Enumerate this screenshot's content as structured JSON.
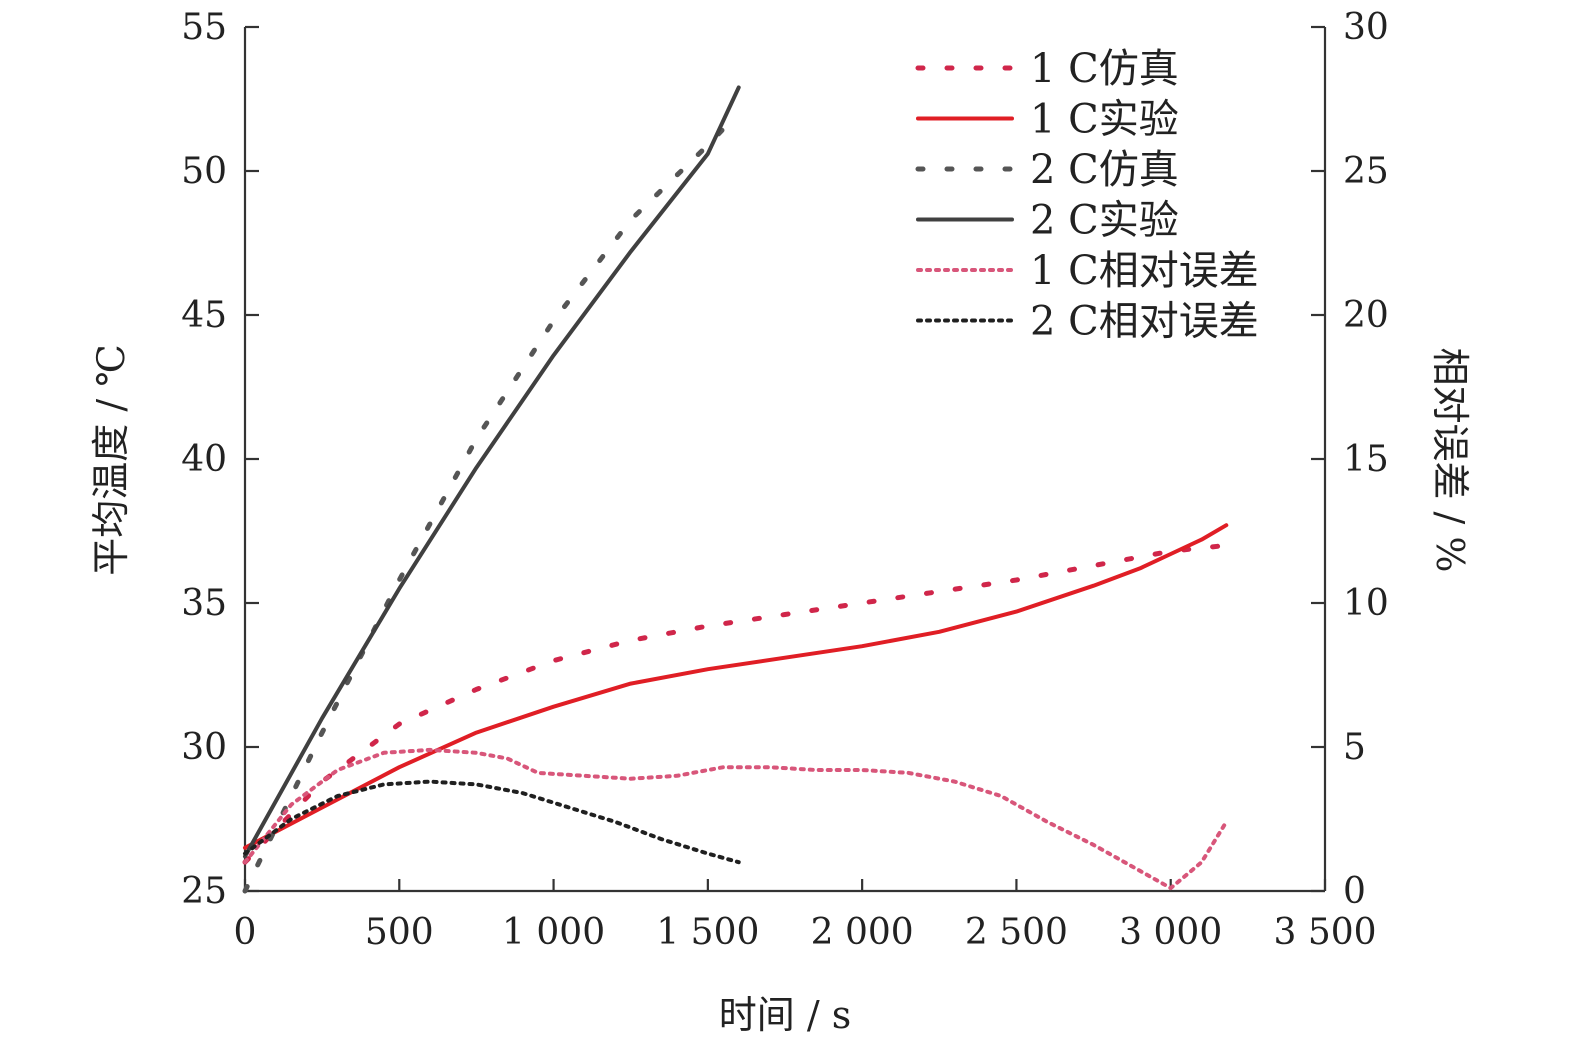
{
  "chart_data": {
    "type": "line",
    "xlabel": "时间 / s",
    "ylabel_left": "平均温度 / ℃",
    "ylabel_right": "相对误差 / %",
    "xlim": [
      0,
      3500
    ],
    "ylim_left": [
      25,
      55
    ],
    "ylim_right": [
      0,
      30
    ],
    "x_ticks": [
      0,
      500,
      1000,
      1500,
      2000,
      2500,
      3000,
      3500
    ],
    "x_tick_labels": [
      "0",
      "500",
      "1 000",
      "1 500",
      "2 000",
      "2 500",
      "3 000",
      "3 500"
    ],
    "y_left_ticks": [
      25,
      30,
      35,
      40,
      45,
      50,
      55
    ],
    "y_right_ticks": [
      0,
      5,
      10,
      15,
      20,
      25,
      30
    ],
    "grid": false,
    "legend_position": "top-right",
    "series": [
      {
        "name": "1 C仿真",
        "axis": "left",
        "style": "dashed",
        "color": "#d0264a",
        "x": [
          0,
          250,
          500,
          750,
          1000,
          1250,
          1500,
          1750,
          2000,
          2250,
          2500,
          2750,
          3000,
          3180
        ],
        "y": [
          26.0,
          28.8,
          30.8,
          32.0,
          33.0,
          33.7,
          34.2,
          34.6,
          35.0,
          35.4,
          35.8,
          36.3,
          36.8,
          37.0
        ]
      },
      {
        "name": "1 C实验",
        "axis": "left",
        "style": "solid",
        "color": "#e01e25",
        "x": [
          0,
          250,
          500,
          750,
          1000,
          1250,
          1500,
          1750,
          2000,
          2250,
          2500,
          2750,
          2900,
          3000,
          3100,
          3180
        ],
        "y": [
          26.5,
          27.9,
          29.3,
          30.5,
          31.4,
          32.2,
          32.7,
          33.1,
          33.5,
          34.0,
          34.7,
          35.6,
          36.2,
          36.7,
          37.2,
          37.7
        ]
      },
      {
        "name": "2 C仿真",
        "axis": "left",
        "style": "dashed",
        "color": "#555555",
        "x": [
          0,
          250,
          500,
          750,
          1000,
          1250,
          1500,
          1580
        ],
        "y": [
          25.0,
          30.5,
          35.8,
          40.7,
          44.8,
          48.3,
          50.9,
          51.8
        ]
      },
      {
        "name": "2 C实验",
        "axis": "left",
        "style": "solid",
        "color": "#404040",
        "x": [
          0,
          250,
          500,
          750,
          1000,
          1250,
          1500,
          1600
        ],
        "y": [
          26.2,
          31.0,
          35.5,
          39.7,
          43.6,
          47.2,
          50.6,
          52.9
        ]
      },
      {
        "name": "1 C相对误差",
        "axis": "right",
        "style": "dotted",
        "color": "#d8567a",
        "x": [
          0,
          150,
          300,
          450,
          600,
          750,
          850,
          950,
          1100,
          1250,
          1400,
          1550,
          1700,
          1850,
          2000,
          2150,
          2300,
          2450,
          2600,
          2750,
          2900,
          3000,
          3100,
          3180
        ],
        "y": [
          1.0,
          3.0,
          4.2,
          4.8,
          4.9,
          4.8,
          4.6,
          4.1,
          4.0,
          3.9,
          4.0,
          4.3,
          4.3,
          4.2,
          4.2,
          4.1,
          3.8,
          3.3,
          2.4,
          1.6,
          0.7,
          0.1,
          1.0,
          2.4
        ]
      },
      {
        "name": "2 C相对误差",
        "axis": "right",
        "style": "dotted",
        "color": "#202020",
        "x": [
          0,
          150,
          300,
          450,
          600,
          750,
          900,
          1050,
          1200,
          1350,
          1500,
          1600
        ],
        "y": [
          1.3,
          2.5,
          3.3,
          3.7,
          3.8,
          3.7,
          3.4,
          2.9,
          2.4,
          1.8,
          1.3,
          1.0
        ]
      }
    ]
  }
}
